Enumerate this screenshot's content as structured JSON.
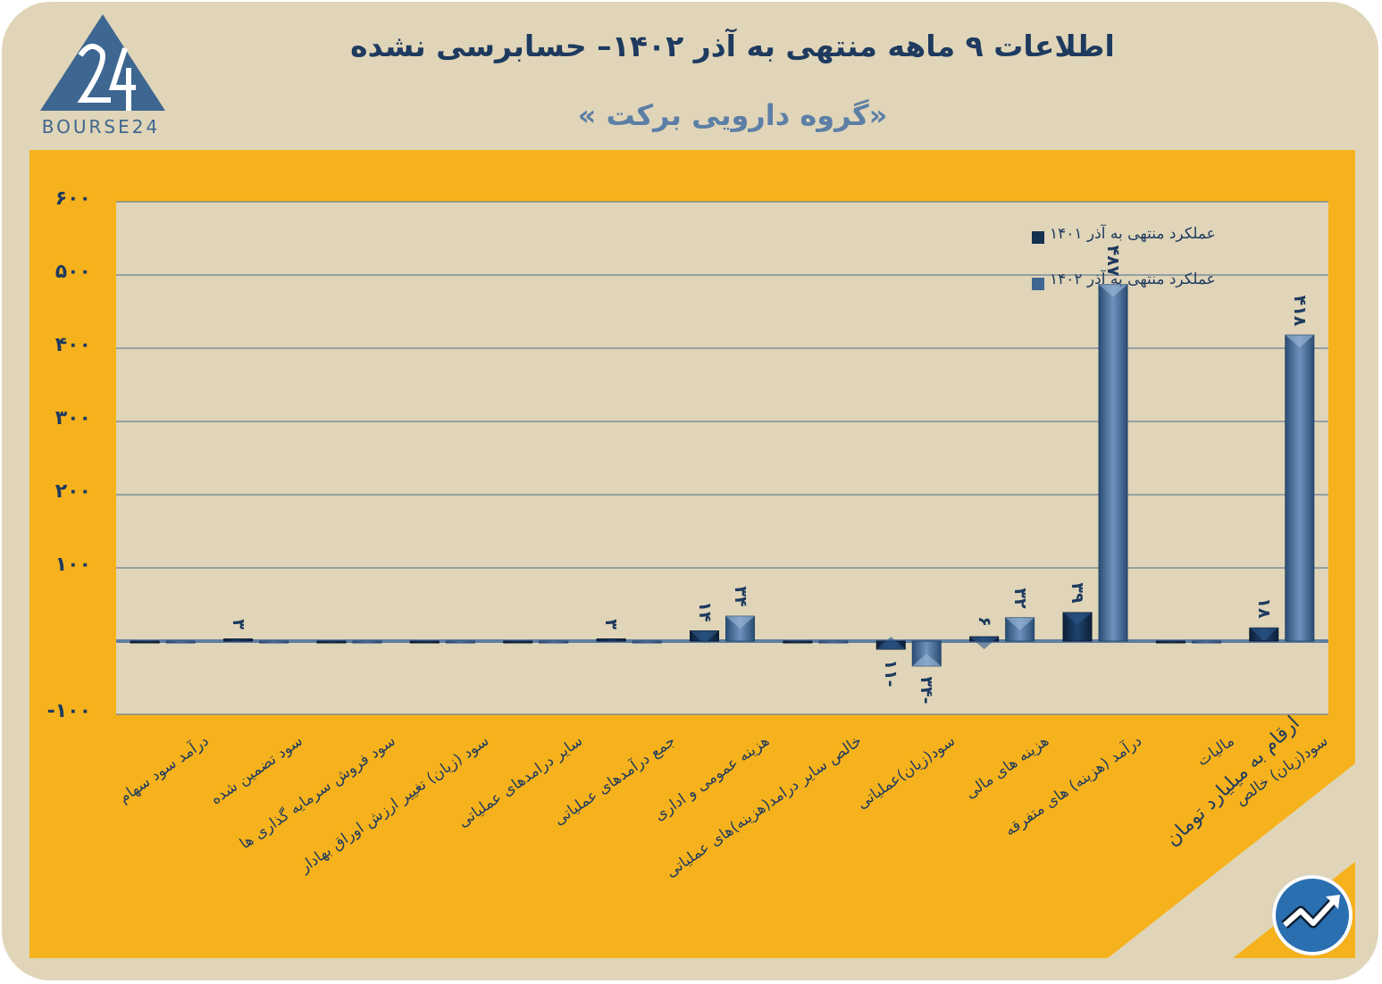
{
  "header": {
    "title": "اطلاعات ۹  ماهه منتهی به آذر ۱۴۰۲– حسابرسی نشده",
    "subtitle": "«گروه دارویی برکت »",
    "logo_text": "BOURSE24",
    "units_note": "ارقام به میلیارد تومان"
  },
  "colors": {
    "background": "#e0d5b8",
    "panel": "#f6b21c",
    "series_1401": "#16304f",
    "series_1402": "#3d6690",
    "text": "#1e3a5f"
  },
  "chart_data": {
    "type": "bar",
    "title": "اطلاعات ۹  ماهه منتهی به آذر ۱۴۰۲– حسابرسی نشده",
    "subtitle": "«گروه دارویی برکت »",
    "ylim": [
      -100,
      600
    ],
    "yticks": [
      -100,
      100,
      200,
      300,
      400,
      500,
      600
    ],
    "ytick_labels": [
      "-۱۰۰",
      "۱۰۰",
      "۲۰۰",
      "۳۰۰",
      "۴۰۰",
      "۵۰۰",
      "۶۰۰"
    ],
    "grid": true,
    "legend_position": "top-right",
    "categories": [
      "درآمد سود سهام",
      "سود تضمین شده",
      "سود فروش سرمایه گذاری ها",
      "سود (زیان) تغییر ارزش اوراق بهادار",
      "سایر درامدهای عملیاتی",
      "جمع درآمدهای عملیاتی",
      "هزینه عمومی و اداری",
      "خالص سایر درامد(هزینه)های عملیاتی",
      "سود(زیان)عملیاتی",
      "هزینه های مالی",
      "درآمد (هزینه) های متفرقه",
      "مالیات",
      "سود(زیان) خالص"
    ],
    "series": [
      {
        "name": "عملکرد منتهی به آذر ۱۴۰۱",
        "values": [
          0,
          3,
          0,
          0,
          0,
          3,
          14,
          0,
          -11,
          6,
          39,
          0,
          18
        ],
        "labels": [
          "",
          "۳",
          "",
          "",
          "",
          "۳",
          "۱۴",
          "",
          "-۱۱",
          "۶",
          "۳۹",
          "",
          "۱۸"
        ]
      },
      {
        "name": "عملکرد منتهی به آذر ۱۴۰۲",
        "values": [
          0,
          0,
          0,
          0,
          0,
          0,
          34,
          0,
          -34,
          32,
          487,
          0,
          418
        ],
        "labels": [
          "",
          "",
          "",
          "",
          "",
          "",
          "۳۴",
          "",
          "-۳۴",
          "۳۲",
          "۴۸۷",
          "",
          "۴۱۸"
        ]
      }
    ]
  }
}
